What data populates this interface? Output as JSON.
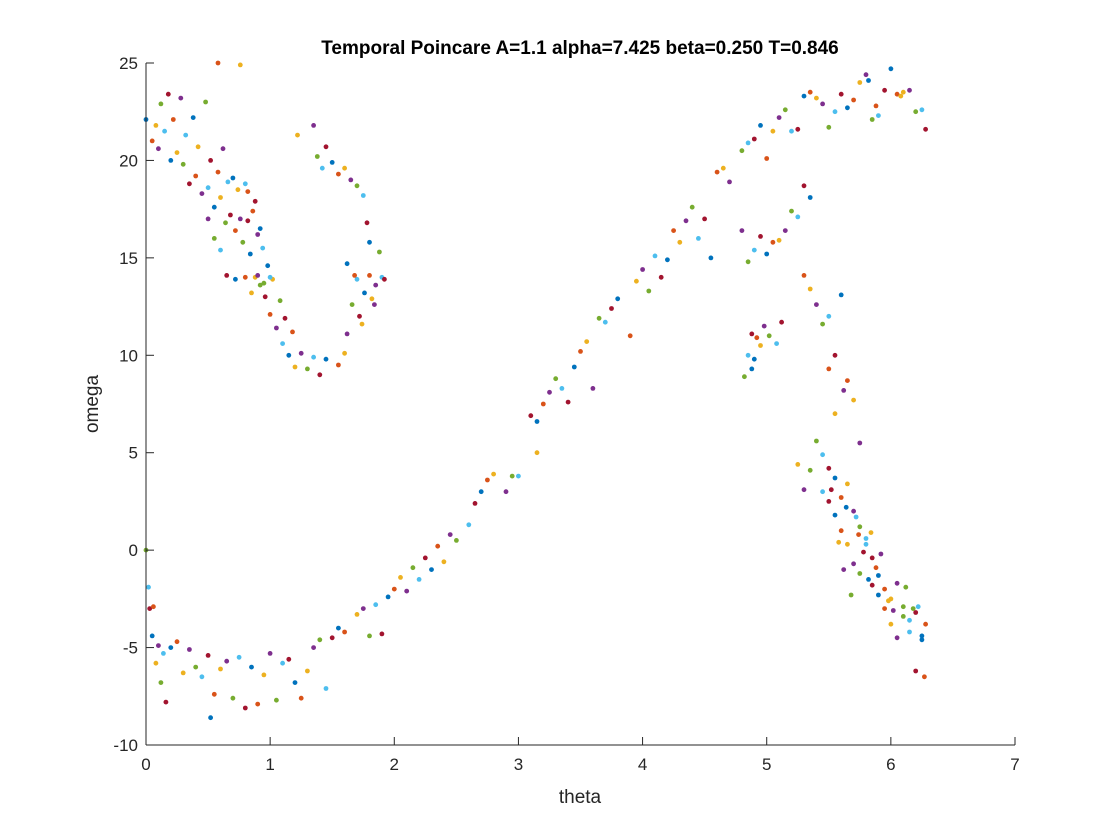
{
  "chart_data": {
    "type": "scatter",
    "title": "Temporal Poincare A=1.1 alpha=7.425 beta=0.250 T=0.846",
    "xlabel": "theta",
    "ylabel": "omega",
    "xlim": [
      0,
      7
    ],
    "ylim": [
      -10,
      25
    ],
    "xticks": [
      "0",
      "1",
      "2",
      "3",
      "4",
      "5",
      "6",
      "7"
    ],
    "yticks": [
      "-10",
      "-5",
      "0",
      "5",
      "10",
      "15",
      "20",
      "25"
    ],
    "grid": false,
    "legend": "none",
    "colors": [
      "#0072BD",
      "#D95319",
      "#EDB120",
      "#7E2F8E",
      "#77AC30",
      "#4DBEEE",
      "#A2142F"
    ],
    "points": [
      [
        0.0,
        22.1
      ],
      [
        0.05,
        21.0
      ],
      [
        0.08,
        21.8
      ],
      [
        0.1,
        20.6
      ],
      [
        0.12,
        22.9
      ],
      [
        0.15,
        21.5
      ],
      [
        0.18,
        23.4
      ],
      [
        0.2,
        20.0
      ],
      [
        0.22,
        22.1
      ],
      [
        0.25,
        20.4
      ],
      [
        0.28,
        23.2
      ],
      [
        0.3,
        19.8
      ],
      [
        0.32,
        21.3
      ],
      [
        0.35,
        18.8
      ],
      [
        0.38,
        22.2
      ],
      [
        0.4,
        19.2
      ],
      [
        0.42,
        20.7
      ],
      [
        0.45,
        18.3
      ],
      [
        0.48,
        23.0
      ],
      [
        0.5,
        18.6
      ],
      [
        0.52,
        20.0
      ],
      [
        0.55,
        17.6
      ],
      [
        0.58,
        19.4
      ],
      [
        0.6,
        18.1
      ],
      [
        0.62,
        20.6
      ],
      [
        0.64,
        16.8
      ],
      [
        0.66,
        18.9
      ],
      [
        0.68,
        17.2
      ],
      [
        0.7,
        19.1
      ],
      [
        0.72,
        16.4
      ],
      [
        0.74,
        18.5
      ],
      [
        0.76,
        17.0
      ],
      [
        0.78,
        15.8
      ],
      [
        0.8,
        18.8
      ],
      [
        0.82,
        16.9
      ],
      [
        0.84,
        15.2
      ],
      [
        0.86,
        17.4
      ],
      [
        0.88,
        14.0
      ],
      [
        0.9,
        16.2
      ],
      [
        0.92,
        13.6
      ],
      [
        0.94,
        15.5
      ],
      [
        0.96,
        13.0
      ],
      [
        0.98,
        14.6
      ],
      [
        1.0,
        12.1
      ],
      [
        1.02,
        13.9
      ],
      [
        1.05,
        11.4
      ],
      [
        1.08,
        12.8
      ],
      [
        1.1,
        10.6
      ],
      [
        1.12,
        11.9
      ],
      [
        1.15,
        10.0
      ],
      [
        1.18,
        11.2
      ],
      [
        1.2,
        9.4
      ],
      [
        1.25,
        10.1
      ],
      [
        1.3,
        9.3
      ],
      [
        1.35,
        9.9
      ],
      [
        1.4,
        9.0
      ],
      [
        1.45,
        9.8
      ],
      [
        0.58,
        25.0
      ],
      [
        0.76,
        24.9
      ],
      [
        0.5,
        17.0
      ],
      [
        0.55,
        16.0
      ],
      [
        0.6,
        15.4
      ],
      [
        0.65,
        14.1
      ],
      [
        0.72,
        13.9
      ],
      [
        0.8,
        14.0
      ],
      [
        0.85,
        13.2
      ],
      [
        0.9,
        14.1
      ],
      [
        0.95,
        13.7
      ],
      [
        1.0,
        14.0
      ],
      [
        0.88,
        17.9
      ],
      [
        0.92,
        16.5
      ],
      [
        0.82,
        18.4
      ],
      [
        1.22,
        21.3
      ],
      [
        1.35,
        21.8
      ],
      [
        1.38,
        20.2
      ],
      [
        1.42,
        19.6
      ],
      [
        1.45,
        20.7
      ],
      [
        1.5,
        19.9
      ],
      [
        1.55,
        19.3
      ],
      [
        1.6,
        19.6
      ],
      [
        1.65,
        19.0
      ],
      [
        1.7,
        18.7
      ],
      [
        1.75,
        18.2
      ],
      [
        1.78,
        16.8
      ],
      [
        1.8,
        15.8
      ],
      [
        1.55,
        9.5
      ],
      [
        1.6,
        10.1
      ],
      [
        1.62,
        11.1
      ],
      [
        1.66,
        12.6
      ],
      [
        1.7,
        13.9
      ],
      [
        1.72,
        12.0
      ],
      [
        1.76,
        13.2
      ],
      [
        1.8,
        14.1
      ],
      [
        1.82,
        12.9
      ],
      [
        1.85,
        13.6
      ],
      [
        1.88,
        15.3
      ],
      [
        1.9,
        14.0
      ],
      [
        1.92,
        13.9
      ],
      [
        1.62,
        14.7
      ],
      [
        1.68,
        14.1
      ],
      [
        1.74,
        11.6
      ],
      [
        1.84,
        12.6
      ],
      [
        0.0,
        0.0
      ],
      [
        0.02,
        -1.9
      ],
      [
        0.03,
        -3.0
      ],
      [
        0.05,
        -4.4
      ],
      [
        0.06,
        -2.9
      ],
      [
        0.08,
        -5.8
      ],
      [
        0.1,
        -4.9
      ],
      [
        0.12,
        -6.8
      ],
      [
        0.14,
        -5.3
      ],
      [
        0.16,
        -7.8
      ],
      [
        0.2,
        -5.0
      ],
      [
        0.25,
        -4.7
      ],
      [
        0.3,
        -6.3
      ],
      [
        0.35,
        -5.1
      ],
      [
        0.4,
        -6.0
      ],
      [
        0.45,
        -6.5
      ],
      [
        0.5,
        -5.4
      ],
      [
        0.52,
        -8.6
      ],
      [
        0.55,
        -7.4
      ],
      [
        0.6,
        -6.1
      ],
      [
        0.65,
        -5.7
      ],
      [
        0.7,
        -7.6
      ],
      [
        0.75,
        -5.5
      ],
      [
        0.8,
        -8.1
      ],
      [
        0.85,
        -6.0
      ],
      [
        0.9,
        -7.9
      ],
      [
        0.95,
        -6.4
      ],
      [
        1.0,
        -5.3
      ],
      [
        1.05,
        -7.7
      ],
      [
        1.1,
        -5.8
      ],
      [
        1.15,
        -5.6
      ],
      [
        1.2,
        -6.8
      ],
      [
        1.25,
        -7.6
      ],
      [
        1.3,
        -6.2
      ],
      [
        1.35,
        -5.0
      ],
      [
        1.4,
        -4.6
      ],
      [
        1.45,
        -7.1
      ],
      [
        1.5,
        -4.5
      ],
      [
        1.55,
        -4.0
      ],
      [
        1.6,
        -4.2
      ],
      [
        1.7,
        -3.3
      ],
      [
        1.75,
        -3.0
      ],
      [
        1.8,
        -4.4
      ],
      [
        1.85,
        -2.8
      ],
      [
        1.9,
        -4.3
      ],
      [
        1.95,
        -2.4
      ],
      [
        2.0,
        -2.0
      ],
      [
        2.05,
        -1.4
      ],
      [
        2.1,
        -2.1
      ],
      [
        2.15,
        -0.9
      ],
      [
        2.2,
        -1.5
      ],
      [
        2.25,
        -0.4
      ],
      [
        2.3,
        -1.0
      ],
      [
        2.35,
        0.2
      ],
      [
        2.4,
        -0.6
      ],
      [
        2.45,
        0.8
      ],
      [
        2.5,
        0.5
      ],
      [
        2.6,
        1.3
      ],
      [
        2.65,
        2.4
      ],
      [
        2.7,
        3.0
      ],
      [
        2.75,
        3.6
      ],
      [
        2.8,
        3.9
      ],
      [
        2.9,
        3.0
      ],
      [
        2.95,
        3.8
      ],
      [
        3.0,
        3.8
      ],
      [
        3.1,
        6.9
      ],
      [
        3.15,
        6.6
      ],
      [
        3.2,
        7.5
      ],
      [
        3.15,
        5.0
      ],
      [
        3.25,
        8.1
      ],
      [
        3.3,
        8.8
      ],
      [
        3.35,
        8.3
      ],
      [
        3.4,
        7.6
      ],
      [
        3.45,
        9.4
      ],
      [
        3.5,
        10.2
      ],
      [
        3.55,
        10.7
      ],
      [
        3.6,
        8.3
      ],
      [
        3.65,
        11.9
      ],
      [
        3.7,
        11.7
      ],
      [
        3.75,
        12.4
      ],
      [
        3.8,
        12.9
      ],
      [
        3.9,
        11.0
      ],
      [
        3.95,
        13.8
      ],
      [
        4.0,
        14.4
      ],
      [
        4.05,
        13.3
      ],
      [
        4.1,
        15.1
      ],
      [
        4.15,
        14.0
      ],
      [
        4.2,
        14.9
      ],
      [
        4.25,
        16.4
      ],
      [
        4.3,
        15.8
      ],
      [
        4.35,
        16.9
      ],
      [
        4.4,
        17.6
      ],
      [
        4.45,
        16.0
      ],
      [
        4.5,
        17.0
      ],
      [
        4.55,
        15.0
      ],
      [
        4.6,
        19.4
      ],
      [
        4.65,
        19.6
      ],
      [
        4.7,
        18.9
      ],
      [
        4.8,
        20.5
      ],
      [
        4.85,
        20.9
      ],
      [
        4.9,
        21.1
      ],
      [
        4.95,
        21.8
      ],
      [
        5.0,
        20.1
      ],
      [
        5.05,
        21.5
      ],
      [
        5.1,
        22.2
      ],
      [
        5.15,
        22.6
      ],
      [
        5.2,
        21.5
      ],
      [
        5.25,
        21.6
      ],
      [
        5.3,
        23.3
      ],
      [
        5.35,
        23.5
      ],
      [
        5.4,
        23.2
      ],
      [
        5.45,
        22.9
      ],
      [
        5.5,
        21.7
      ],
      [
        5.55,
        22.5
      ],
      [
        5.6,
        23.4
      ],
      [
        5.65,
        22.7
      ],
      [
        5.7,
        23.1
      ],
      [
        5.75,
        24.0
      ],
      [
        5.8,
        24.4
      ],
      [
        5.85,
        22.1
      ],
      [
        5.9,
        22.3
      ],
      [
        5.95,
        23.6
      ],
      [
        6.0,
        24.7
      ],
      [
        6.05,
        23.4
      ],
      [
        6.1,
        23.5
      ],
      [
        6.15,
        23.6
      ],
      [
        6.2,
        22.5
      ],
      [
        6.25,
        22.6
      ],
      [
        6.28,
        21.6
      ],
      [
        5.82,
        24.1
      ],
      [
        5.88,
        22.8
      ],
      [
        6.08,
        23.3
      ],
      [
        4.8,
        16.4
      ],
      [
        4.85,
        14.8
      ],
      [
        4.9,
        15.4
      ],
      [
        4.95,
        16.1
      ],
      [
        5.0,
        15.2
      ],
      [
        5.05,
        15.8
      ],
      [
        5.1,
        15.9
      ],
      [
        5.15,
        16.4
      ],
      [
        5.2,
        17.4
      ],
      [
        5.25,
        17.1
      ],
      [
        5.3,
        18.7
      ],
      [
        5.35,
        18.1
      ],
      [
        5.3,
        14.1
      ],
      [
        5.35,
        13.4
      ],
      [
        5.4,
        12.6
      ],
      [
        5.45,
        11.6
      ],
      [
        5.5,
        12.0
      ],
      [
        5.55,
        10.0
      ],
      [
        5.6,
        13.1
      ],
      [
        5.65,
        8.7
      ],
      [
        5.7,
        7.7
      ],
      [
        5.75,
        5.5
      ],
      [
        4.82,
        8.9
      ],
      [
        4.85,
        10.0
      ],
      [
        4.88,
        11.1
      ],
      [
        4.9,
        9.8
      ],
      [
        4.92,
        10.9
      ],
      [
        4.95,
        10.5
      ],
      [
        4.98,
        11.5
      ],
      [
        5.02,
        11.0
      ],
      [
        5.08,
        10.6
      ],
      [
        5.12,
        11.7
      ],
      [
        4.88,
        9.3
      ],
      [
        5.5,
        9.3
      ],
      [
        5.55,
        7.0
      ],
      [
        5.62,
        8.2
      ],
      [
        5.4,
        5.6
      ],
      [
        5.45,
        4.9
      ],
      [
        5.5,
        4.2
      ],
      [
        5.55,
        3.7
      ],
      [
        5.6,
        2.7
      ],
      [
        5.65,
        3.4
      ],
      [
        5.7,
        2.0
      ],
      [
        5.75,
        1.2
      ],
      [
        5.8,
        0.3
      ],
      [
        5.85,
        -0.4
      ],
      [
        5.9,
        -1.3
      ],
      [
        5.95,
        -2.0
      ],
      [
        6.0,
        -2.5
      ],
      [
        6.05,
        -1.7
      ],
      [
        6.1,
        -2.9
      ],
      [
        6.15,
        -3.6
      ],
      [
        6.2,
        -3.2
      ],
      [
        6.25,
        -4.4
      ],
      [
        6.28,
        -3.8
      ],
      [
        5.25,
        4.4
      ],
      [
        5.3,
        3.1
      ],
      [
        5.35,
        4.1
      ],
      [
        5.45,
        3.0
      ],
      [
        5.5,
        2.5
      ],
      [
        5.55,
        1.8
      ],
      [
        5.6,
        1.0
      ],
      [
        5.65,
        0.3
      ],
      [
        5.7,
        -0.7
      ],
      [
        5.75,
        -1.2
      ],
      [
        5.8,
        0.6
      ],
      [
        5.85,
        -1.8
      ],
      [
        5.9,
        -2.3
      ],
      [
        5.95,
        -3.0
      ],
      [
        6.0,
        -3.8
      ],
      [
        6.05,
        -4.5
      ],
      [
        6.1,
        -3.4
      ],
      [
        6.15,
        -4.2
      ],
      [
        6.2,
        -6.2
      ],
      [
        6.25,
        -4.6
      ],
      [
        6.27,
        -6.5
      ],
      [
        5.58,
        0.4
      ],
      [
        5.62,
        -1.0
      ],
      [
        5.68,
        -2.3
      ],
      [
        5.72,
        1.7
      ],
      [
        5.78,
        -0.1
      ],
      [
        5.82,
        -1.5
      ],
      [
        5.88,
        -0.9
      ],
      [
        5.98,
        -2.6
      ],
      [
        6.02,
        -3.1
      ],
      [
        6.12,
        -1.9
      ],
      [
        6.22,
        -2.9
      ],
      [
        5.52,
        3.1
      ],
      [
        5.64,
        2.2
      ],
      [
        5.74,
        0.8
      ],
      [
        5.84,
        0.9
      ],
      [
        5.92,
        -0.2
      ],
      [
        6.18,
        -3.0
      ]
    ]
  }
}
